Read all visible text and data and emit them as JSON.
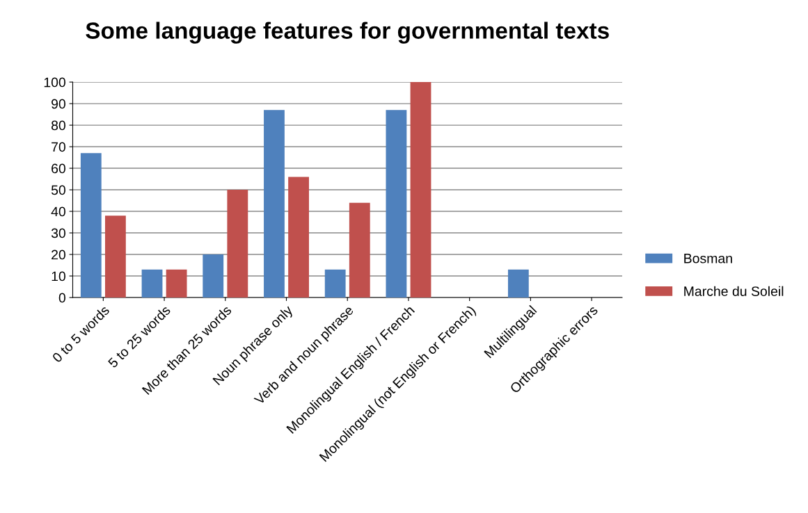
{
  "chart_data": {
    "type": "bar",
    "title": "Some language features for governmental texts",
    "categories": [
      "0 to 5 words",
      "5 to 25 words",
      "More than 25 words",
      "Noun phrase only",
      "Verb and noun phrase",
      "Monolingual English / French",
      "Monolingual (not English or French)",
      "Multilingual",
      "Orthographic errors"
    ],
    "series": [
      {
        "name": "Bosman",
        "color": "#4f81bd",
        "values": [
          67,
          13,
          20,
          87,
          13,
          87,
          0,
          13,
          0
        ]
      },
      {
        "name": "Marche du Soleil",
        "color": "#c0504d",
        "values": [
          38,
          13,
          50,
          56,
          44,
          100,
          0,
          0,
          0
        ]
      }
    ],
    "ylim": [
      0,
      100
    ],
    "yticks": [
      0,
      10,
      20,
      30,
      40,
      50,
      60,
      70,
      80,
      90,
      100
    ],
    "grid": "y",
    "legend": "right"
  }
}
